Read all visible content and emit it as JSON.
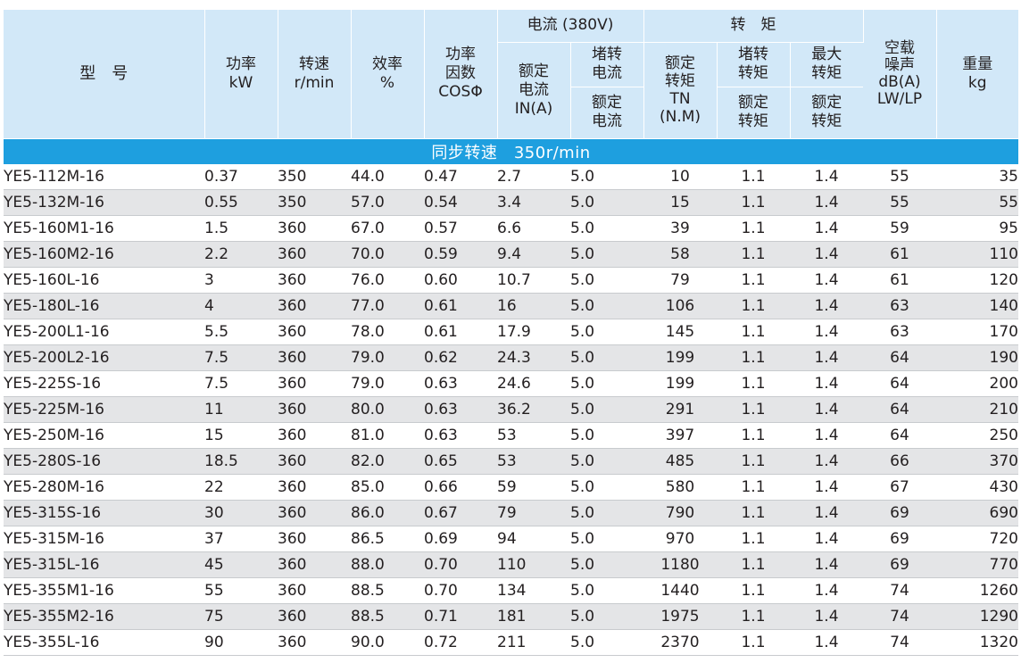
{
  "header": {
    "model": "型　号",
    "power": "功率\nkW",
    "speed": "转速\nr/min",
    "efficiency": "效率\n%",
    "power_factor": "功率\n因数\nCOSΦ",
    "current_group": "电流 (380V)",
    "rated_current": "额定\n电流\nIN(A)",
    "locked_current_top": "堵转\n电流",
    "locked_current_bottom": "额定\n电流",
    "torque_group": "转　矩",
    "rated_torque": "额定\n转矩\nTN\n(N.M)",
    "locked_torque_top": "堵转\n转矩",
    "locked_torque_bottom": "额定\n转矩",
    "max_torque_top": "最大\n转矩",
    "max_torque_bottom": "额定\n转矩",
    "noise": "空载\n噪声\ndB(A)\nLW/LP",
    "weight": "重量\nkg"
  },
  "section_title": "同步转速　350r/min",
  "rows": [
    [
      "YE5-112M-16",
      "0.37",
      "350",
      "44.0",
      "0.47",
      "2.7",
      "5.0",
      "10",
      "1.1",
      "1.4",
      "55",
      "35"
    ],
    [
      "YE5-132M-16",
      "0.55",
      "350",
      "57.0",
      "0.54",
      "3.4",
      "5.0",
      "15",
      "1.1",
      "1.4",
      "55",
      "55"
    ],
    [
      "YE5-160M1-16",
      "1.5",
      "360",
      "67.0",
      "0.57",
      "6.6",
      "5.0",
      "39",
      "1.1",
      "1.4",
      "59",
      "95"
    ],
    [
      "YE5-160M2-16",
      "2.2",
      "360",
      "70.0",
      "0.59",
      "9.4",
      "5.0",
      "58",
      "1.1",
      "1.4",
      "61",
      "110"
    ],
    [
      "YE5-160L-16",
      "3",
      "360",
      "76.0",
      "0.60",
      "10.7",
      "5.0",
      "79",
      "1.1",
      "1.4",
      "61",
      "120"
    ],
    [
      "YE5-180L-16",
      "4",
      "360",
      "77.0",
      "0.61",
      "16",
      "5.0",
      "106",
      "1.1",
      "1.4",
      "63",
      "140"
    ],
    [
      "YE5-200L1-16",
      "5.5",
      "360",
      "78.0",
      "0.61",
      "17.9",
      "5.0",
      "145",
      "1.1",
      "1.4",
      "63",
      "170"
    ],
    [
      "YE5-200L2-16",
      "7.5",
      "360",
      "79.0",
      "0.62",
      "24.3",
      "5.0",
      "199",
      "1.1",
      "1.4",
      "64",
      "190"
    ],
    [
      "YE5-225S-16",
      "7.5",
      "360",
      "79.0",
      "0.63",
      "24.6",
      "5.0",
      "199",
      "1.1",
      "1.4",
      "64",
      "200"
    ],
    [
      "YE5-225M-16",
      "11",
      "360",
      "80.0",
      "0.63",
      "36.2",
      "5.0",
      "291",
      "1.1",
      "1.4",
      "64",
      "210"
    ],
    [
      "YE5-250M-16",
      "15",
      "360",
      "81.0",
      "0.63",
      "53",
      "5.0",
      "397",
      "1.1",
      "1.4",
      "64",
      "250"
    ],
    [
      "YE5-280S-16",
      "18.5",
      "360",
      "82.0",
      "0.65",
      "53",
      "5.0",
      "485",
      "1.1",
      "1.4",
      "66",
      "370"
    ],
    [
      "YE5-280M-16",
      "22",
      "360",
      "85.0",
      "0.66",
      "59",
      "5.0",
      "580",
      "1.1",
      "1.4",
      "67",
      "430"
    ],
    [
      "YE5-315S-16",
      "30",
      "360",
      "86.0",
      "0.67",
      "79",
      "5.0",
      "790",
      "1.1",
      "1.4",
      "69",
      "690"
    ],
    [
      "YE5-315M-16",
      "37",
      "360",
      "86.5",
      "0.69",
      "94",
      "5.0",
      "970",
      "1.1",
      "1.4",
      "69",
      "720"
    ],
    [
      "YE5-315L-16",
      "45",
      "360",
      "88.0",
      "0.70",
      "110",
      "5.0",
      "1180",
      "1.1",
      "1.4",
      "69",
      "770"
    ],
    [
      "YE5-355M1-16",
      "55",
      "360",
      "88.5",
      "0.70",
      "134",
      "5.0",
      "1440",
      "1.1",
      "1.4",
      "74",
      "1260"
    ],
    [
      "YE5-355M2-16",
      "75",
      "360",
      "88.5",
      "0.71",
      "181",
      "5.0",
      "1975",
      "1.1",
      "1.4",
      "74",
      "1290"
    ],
    [
      "YE5-355L-16",
      "90",
      "360",
      "90.0",
      "0.72",
      "211",
      "5.0",
      "2370",
      "1.1",
      "1.4",
      "74",
      "1320"
    ]
  ],
  "colors": {
    "header_bg": "#d2e8f8",
    "section_bg": "#1e9fdf",
    "stripe_bg": "#e4e5e7"
  }
}
